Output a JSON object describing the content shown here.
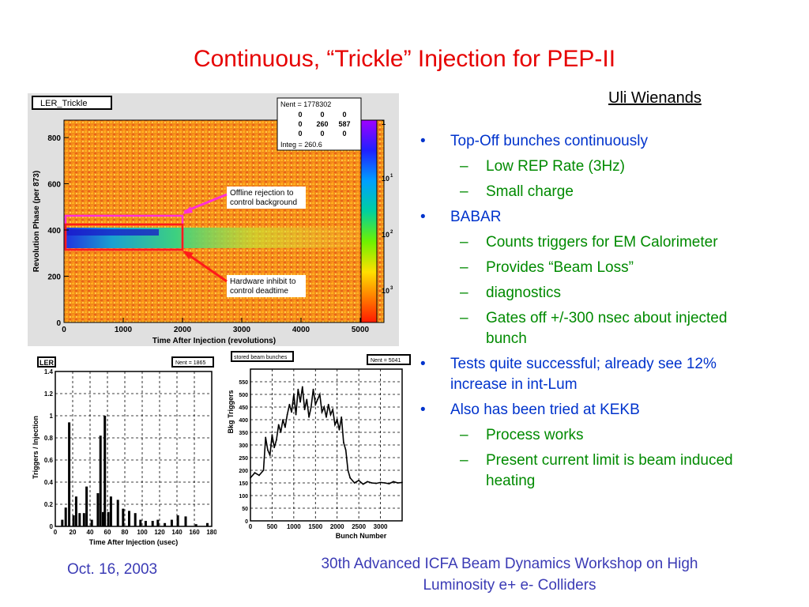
{
  "slide": {
    "title": "Continuous, “Trickle” Injection for PEP-II",
    "author": "Uli Wienands",
    "footer_date": "Oct. 16, 2003",
    "footer_event_line1": "30th Advanced ICFA Beam Dynamics Workshop on High",
    "footer_event_line2": "Luminosity e+ e- Colliders"
  },
  "bullets": [
    {
      "text": "Top-Off bunches continuously",
      "level": 1
    },
    {
      "text": "Low REP Rate (3Hz)",
      "level": 2
    },
    {
      "text": "Small charge",
      "level": 2
    },
    {
      "text": "BABAR",
      "level": 1
    },
    {
      "text": "Counts triggers for EM Calorimeter",
      "level": 2
    },
    {
      "text": "Provides “Beam Loss”",
      "level": 2
    },
    {
      "text": "diagnostics",
      "level": 2
    },
    {
      "text": "Gates off +/-300 nsec about injected bunch",
      "level": 2
    },
    {
      "text": "Tests quite successful; already see 12% increase in int-Lum",
      "level": 1
    },
    {
      "text": "Also has been tried at KEKB",
      "level": 1
    },
    {
      "text": "Process works",
      "level": 2
    },
    {
      "text": "Present current limit is beam induced heating",
      "level": 2
    }
  ],
  "heatmap": {
    "histogram_name": "LER_Trickle",
    "stats": {
      "nent": "Nent = 1778302",
      "rows": [
        [
          "0",
          "0",
          "0"
        ],
        [
          "0",
          "260",
          "587"
        ],
        [
          "0",
          "0",
          "0"
        ]
      ],
      "integ": "Integ =  260.6"
    },
    "xlabel": "Time After Injection (revolutions)",
    "ylabel": "Revolution Phase (per 873)",
    "xticks": [
      "0",
      "1000",
      "2000",
      "3000",
      "4000",
      "5000"
    ],
    "yticks": [
      "0",
      "200",
      "400",
      "600",
      "800"
    ],
    "colorbar_ticks": [
      "1",
      "10",
      "10",
      "10"
    ],
    "colorbar_exps": [
      "",
      "1",
      "2",
      "3"
    ],
    "annotation_offline": [
      "Offline rejection to",
      "control background"
    ],
    "annotation_hardware": [
      "Hardware inhibit to",
      "control deadtime"
    ],
    "colors": {
      "box_magenta": "#ff2fd5",
      "box_red": "#ff1a1a"
    }
  },
  "chart_data": [
    {
      "type": "bar",
      "title": "",
      "histogram_name": "LER",
      "stats_label": "Nent = 1865",
      "xlabel": "Time After Injection (usec)",
      "ylabel": "Triggers / Injection",
      "xticks": [
        "0",
        "20",
        "40",
        "60",
        "80",
        "100",
        "120",
        "140",
        "160",
        "180"
      ],
      "yticks": [
        "0",
        "0.2",
        "0.4",
        "0.6",
        "0.8",
        "1",
        "1.2",
        "1.4"
      ],
      "xlim": [
        0,
        180
      ],
      "ylim": [
        0,
        1.4
      ],
      "x": [
        8,
        12,
        16,
        21,
        24,
        28,
        33,
        36,
        42,
        49,
        52,
        55,
        57,
        61,
        64,
        72,
        78,
        85,
        92,
        98,
        104,
        112,
        118,
        126,
        134,
        141,
        150,
        162,
        175
      ],
      "values": [
        0.06,
        0.17,
        0.94,
        0.1,
        0.27,
        0.12,
        0.12,
        0.36,
        0.06,
        0.3,
        0.82,
        0.13,
        1.0,
        0.13,
        0.27,
        0.24,
        0.16,
        0.14,
        0.12,
        0.06,
        0.05,
        0.05,
        0.06,
        0.03,
        0.06,
        0.1,
        0.09,
        0.02,
        0.03
      ]
    },
    {
      "type": "line",
      "title": "",
      "histogram_name": "stored beam bunches",
      "stats_label": "Nent = 5041",
      "xlabel": "Bunch Number",
      "ylabel": "Bkg Triggers",
      "xticks": [
        "0",
        "500",
        "1000",
        "1500",
        "2000",
        "2500",
        "3000"
      ],
      "yticks": [
        "0",
        "50",
        "100",
        "150",
        "200",
        "250",
        "300",
        "350",
        "400",
        "450",
        "500",
        "550"
      ],
      "xlim": [
        0,
        3500
      ],
      "ylim": [
        0,
        600
      ],
      "x": [
        0,
        100,
        200,
        300,
        350,
        400,
        450,
        500,
        550,
        600,
        650,
        700,
        750,
        800,
        850,
        900,
        950,
        1000,
        1050,
        1100,
        1150,
        1200,
        1250,
        1300,
        1350,
        1400,
        1450,
        1500,
        1550,
        1600,
        1650,
        1700,
        1750,
        1800,
        1850,
        1900,
        1950,
        2000,
        2050,
        2100,
        2150,
        2200,
        2250,
        2300,
        2400,
        2500,
        2600,
        2700,
        2800,
        2900,
        3000,
        3100,
        3200,
        3300,
        3400,
        3500
      ],
      "values": [
        170,
        190,
        180,
        200,
        330,
        280,
        260,
        340,
        290,
        320,
        380,
        350,
        400,
        370,
        420,
        460,
        430,
        500,
        420,
        520,
        470,
        530,
        440,
        480,
        410,
        450,
        520,
        460,
        480,
        500,
        430,
        450,
        410,
        460,
        420,
        440,
        380,
        400,
        360,
        410,
        310,
        280,
        200,
        170,
        150,
        160,
        145,
        155,
        150,
        148,
        152,
        150,
        147,
        155,
        150,
        152
      ]
    }
  ]
}
